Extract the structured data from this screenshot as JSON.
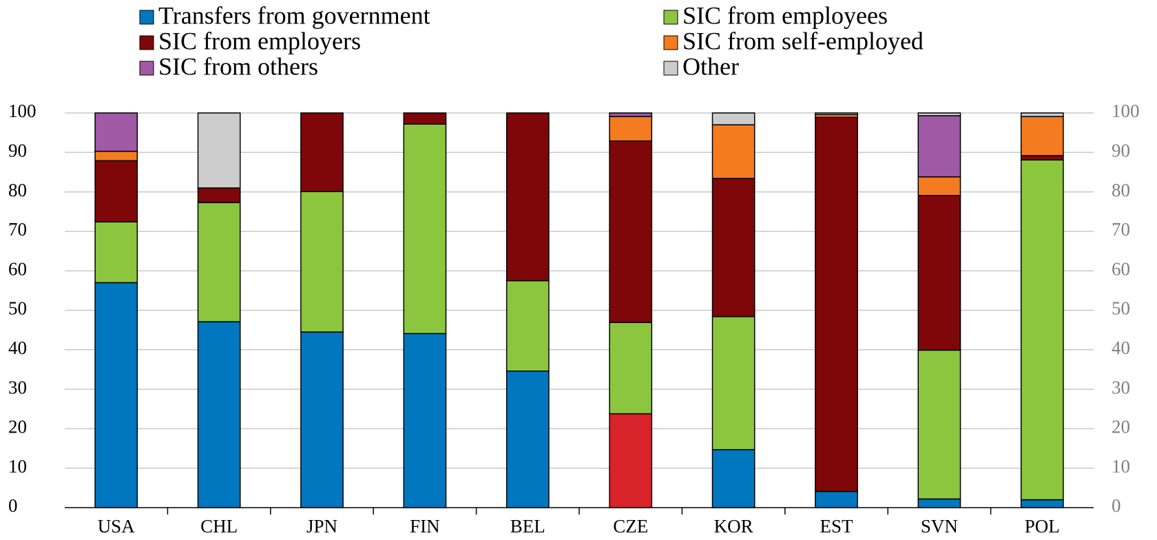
{
  "chart_data": {
    "type": "stacked_bar",
    "categories": [
      "USA",
      "CHL",
      "JPN",
      "FIN",
      "BEL",
      "CZE",
      "KOR",
      "EST",
      "SVN",
      "POL"
    ],
    "series": [
      {
        "name": "Transfers from government",
        "color": "#0077bf",
        "values": [
          57.0,
          47.1,
          44.5,
          44.1,
          34.6,
          23.8,
          14.7,
          4.1,
          2.2,
          2.0
        ],
        "colors": [
          null,
          null,
          null,
          null,
          null,
          "#d9232a",
          null,
          null,
          null,
          null
        ]
      },
      {
        "name": "SIC from employees",
        "color": "#8cc63f",
        "values": [
          15.4,
          30.2,
          35.6,
          53.1,
          22.9,
          23.1,
          33.7,
          0,
          37.7,
          86.1
        ]
      },
      {
        "name": "SIC from employers",
        "color": "#7f0709",
        "values": [
          15.5,
          3.7,
          19.9,
          2.8,
          42.5,
          46.0,
          35.0,
          94.8,
          39.2,
          1.1
        ]
      },
      {
        "name": "SIC from self-employed",
        "color": "#f47b20",
        "values": [
          2.4,
          0,
          0,
          0,
          0,
          6.2,
          13.6,
          0.7,
          4.7,
          9.9
        ]
      },
      {
        "name": "SIC from others",
        "color": "#a05aa5",
        "values": [
          9.7,
          0,
          0,
          0,
          0,
          0.9,
          0,
          0,
          15.5,
          0
        ]
      },
      {
        "name": "Other",
        "color": "#cccccc",
        "values": [
          0,
          19.0,
          0,
          0,
          0,
          0,
          3.0,
          0.4,
          0.7,
          0.9
        ]
      }
    ],
    "ylim": [
      0,
      100
    ],
    "yticks": [
      0,
      10,
      20,
      30,
      40,
      50,
      60,
      70,
      80,
      90,
      100
    ],
    "y2lim": [
      0,
      100
    ],
    "y2ticks": [
      0,
      10,
      20,
      30,
      40,
      50,
      60,
      70,
      80,
      90,
      100
    ],
    "grid": true
  }
}
